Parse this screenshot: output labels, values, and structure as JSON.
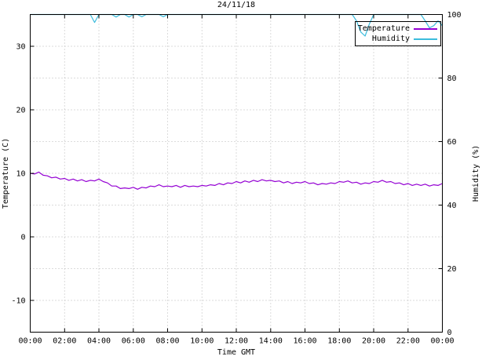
{
  "chart_data": {
    "type": "line",
    "title": "24/11/18",
    "xlabel": "Time GMT",
    "ylabel": "Temperature (C)",
    "y2label": "Humidity (%)",
    "grid": true,
    "legend_position": "top-right-inside",
    "x_start_hour": 0,
    "x_interval_hours": 0.25,
    "x_ticks": [
      "00:00",
      "02:00",
      "04:00",
      "06:00",
      "08:00",
      "10:00",
      "12:00",
      "14:00",
      "16:00",
      "18:00",
      "20:00",
      "22:00",
      "00:00"
    ],
    "x_tick_hours": [
      0,
      2,
      4,
      6,
      8,
      10,
      12,
      14,
      16,
      18,
      20,
      22,
      24
    ],
    "ylim": [
      -15,
      35
    ],
    "y_ticks": [
      -10,
      0,
      10,
      20,
      30
    ],
    "y2lim": [
      0,
      100
    ],
    "y2_ticks": [
      0,
      20,
      40,
      60,
      80,
      100
    ],
    "series": [
      {
        "name": "Temperature",
        "axis": "y1",
        "color": "#9400d3",
        "values": [
          10.0,
          9.9,
          10.2,
          9.7,
          9.6,
          9.3,
          9.4,
          9.1,
          9.2,
          8.9,
          9.1,
          8.8,
          9.0,
          8.7,
          8.9,
          8.8,
          9.1,
          8.7,
          8.5,
          8.0,
          8.0,
          7.6,
          7.7,
          7.6,
          7.8,
          7.5,
          7.8,
          7.7,
          8.0,
          7.9,
          8.2,
          7.9,
          8.0,
          7.9,
          8.1,
          7.8,
          8.1,
          7.9,
          8.0,
          7.9,
          8.1,
          8.0,
          8.2,
          8.1,
          8.4,
          8.2,
          8.5,
          8.4,
          8.7,
          8.5,
          8.8,
          8.6,
          8.9,
          8.7,
          9.0,
          8.8,
          8.9,
          8.7,
          8.8,
          8.5,
          8.7,
          8.4,
          8.6,
          8.5,
          8.7,
          8.4,
          8.5,
          8.2,
          8.4,
          8.3,
          8.5,
          8.4,
          8.7,
          8.6,
          8.8,
          8.5,
          8.6,
          8.3,
          8.5,
          8.4,
          8.7,
          8.6,
          8.9,
          8.6,
          8.7,
          8.4,
          8.5,
          8.2,
          8.4,
          8.1,
          8.3,
          8.1,
          8.3,
          8.0,
          8.2,
          8.1,
          8.4
        ]
      },
      {
        "name": "Humidity",
        "axis": "y2",
        "color": "#3bbcdd",
        "values": [
          100,
          100,
          100,
          100,
          100,
          100,
          100,
          100,
          100,
          100,
          100,
          100,
          100,
          100,
          100,
          97.5,
          100,
          100,
          100,
          100,
          99.2,
          100,
          100,
          99.2,
          100,
          100,
          99.3,
          100,
          100,
          100,
          100,
          99.3,
          100,
          100,
          100,
          100,
          100,
          100,
          100,
          100,
          100,
          100,
          100,
          100,
          100,
          100,
          100,
          100,
          100,
          100,
          100,
          100,
          100,
          100,
          100,
          100,
          100,
          100,
          100,
          100,
          100,
          100,
          100,
          100,
          100,
          100,
          100,
          100,
          100,
          100,
          100,
          100,
          100,
          100,
          100,
          100,
          98,
          94.5,
          93.2,
          97,
          100,
          100,
          100,
          100,
          100,
          100,
          100,
          100,
          100,
          100,
          100,
          100,
          98,
          95.8,
          96.5,
          98,
          96.5
        ]
      }
    ]
  }
}
